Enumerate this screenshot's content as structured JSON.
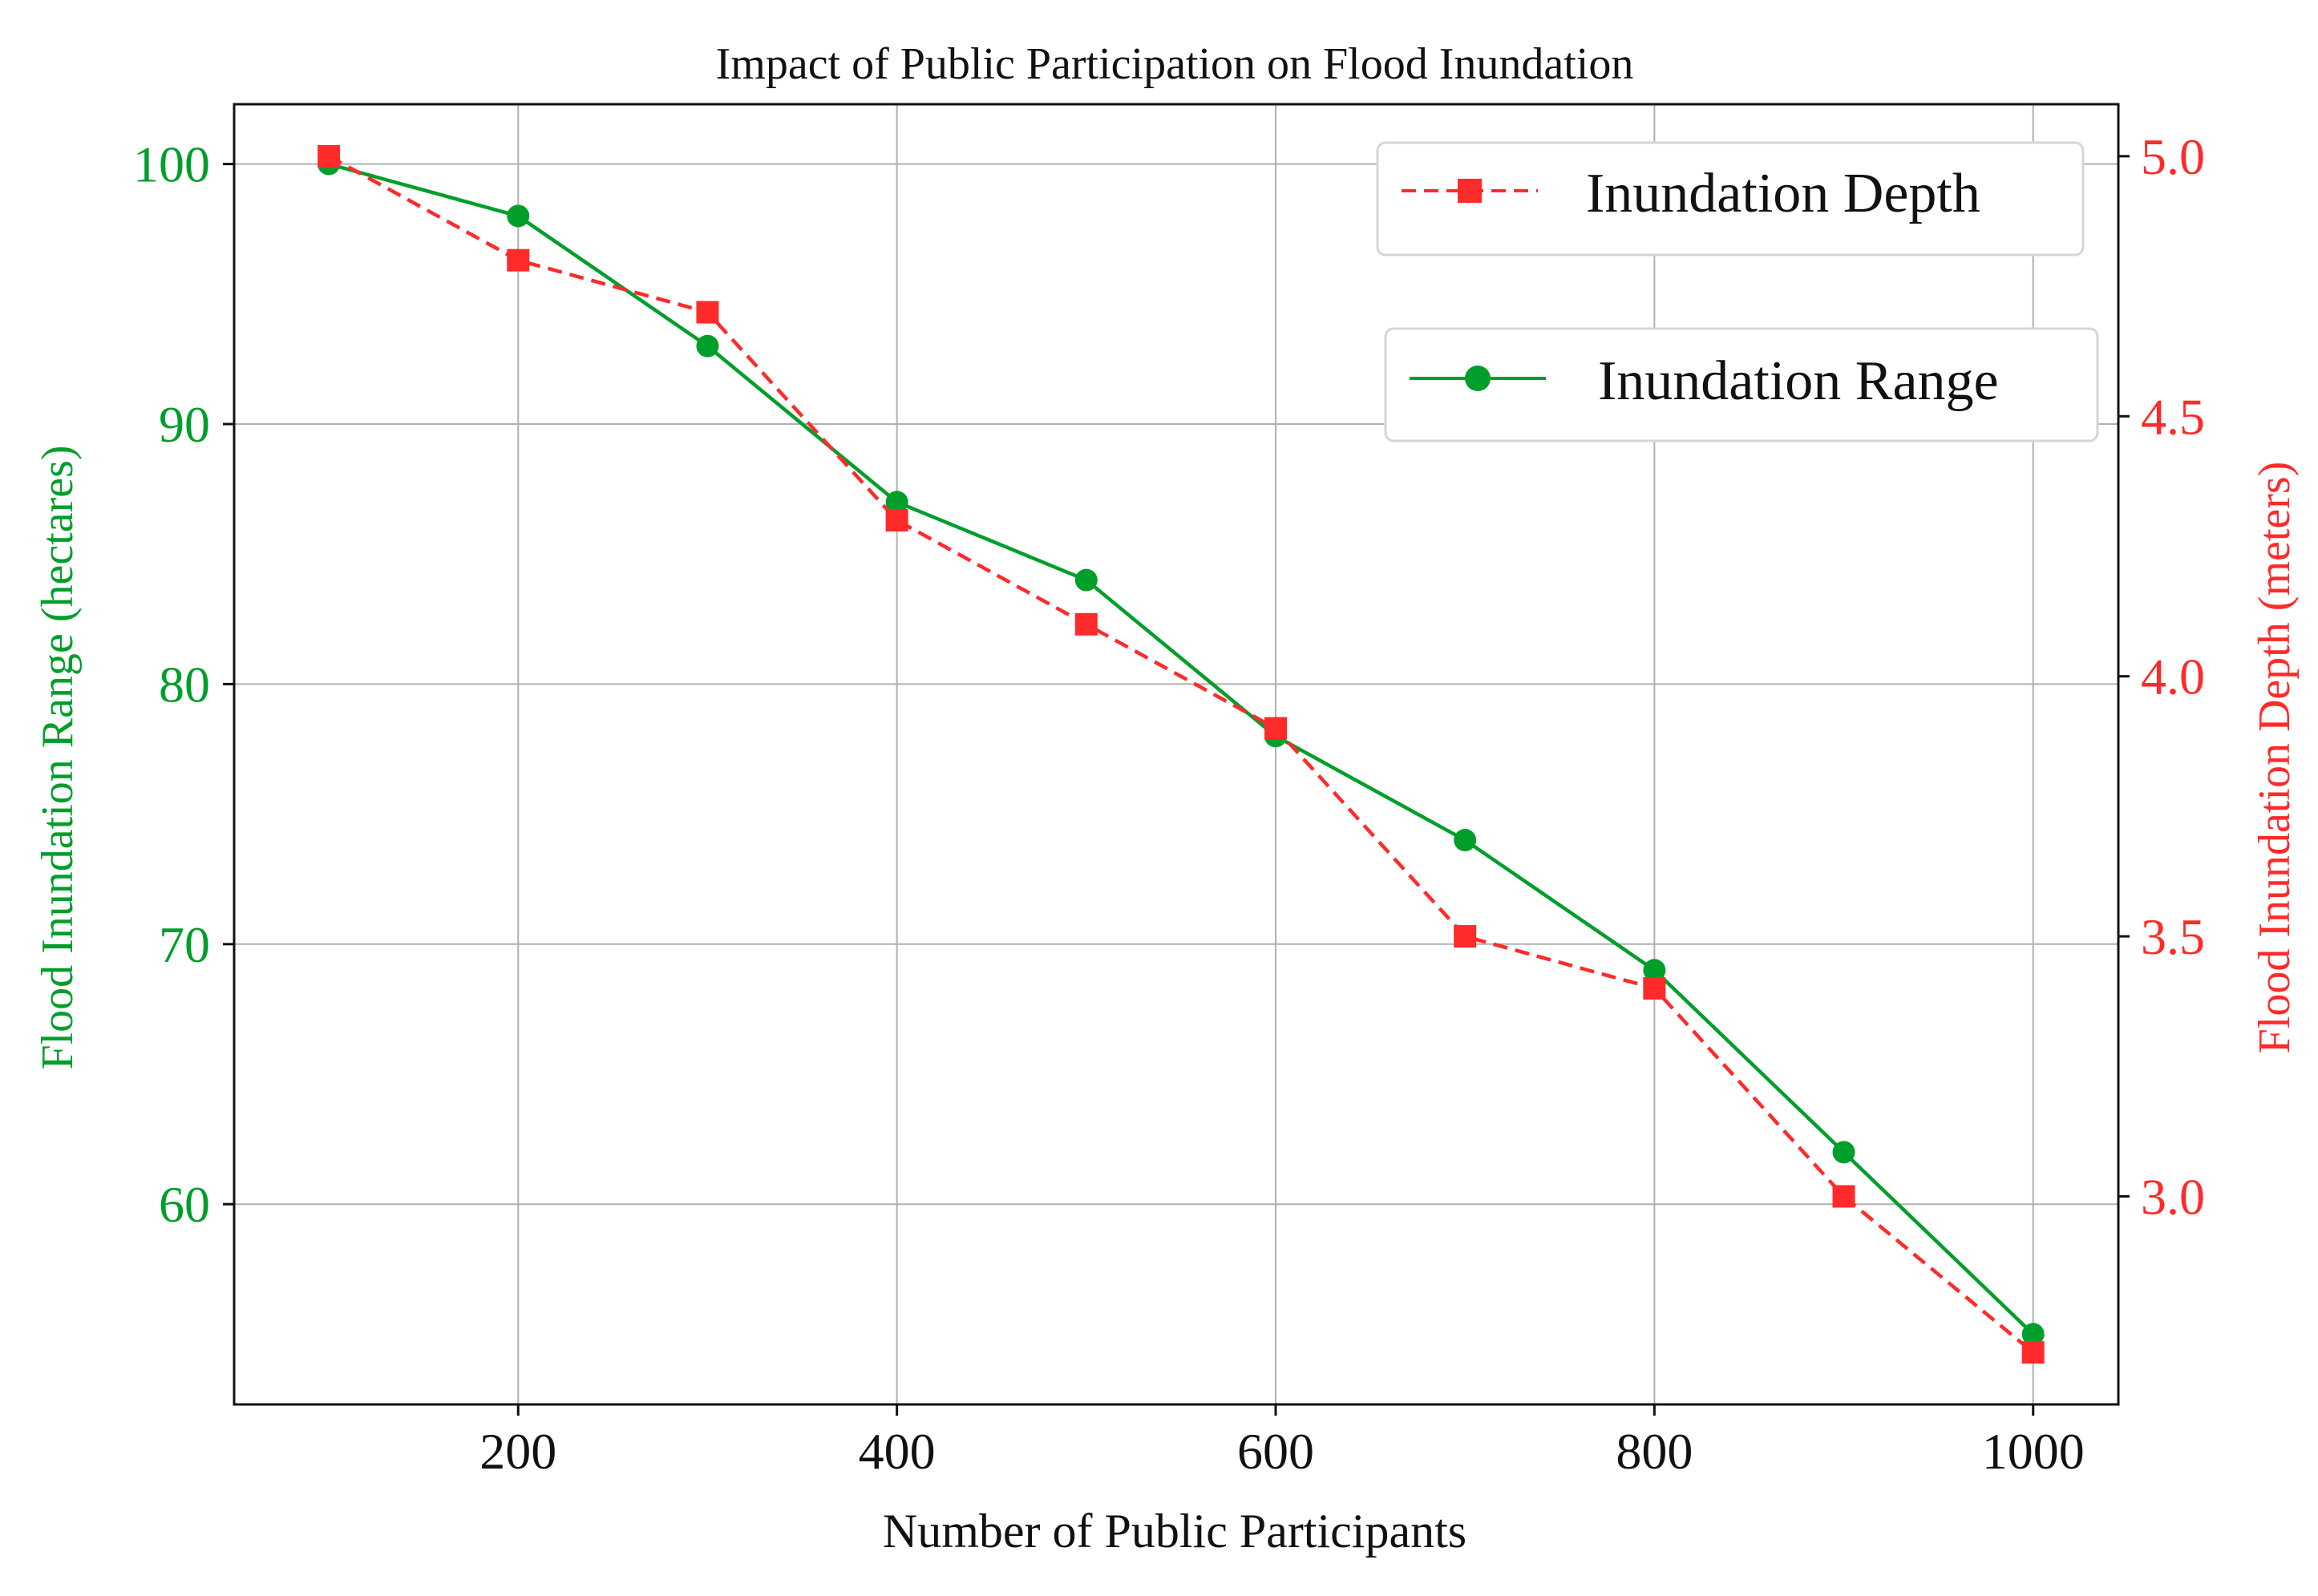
{
  "chart_data": {
    "type": "line",
    "title": "Impact of Public Participation on Flood Inundation",
    "xlabel": "Number of Public Participants",
    "ylabel_left": "Flood Inundation Range (hectares)",
    "ylabel_right": "Flood Inundation Depth (meters)",
    "x": [
      100,
      200,
      300,
      400,
      500,
      600,
      700,
      800,
      900,
      1000
    ],
    "xlim": [
      50,
      1045
    ],
    "ylim_left": [
      52.3,
      102.3
    ],
    "ylim_right": [
      2.6,
      5.1
    ],
    "x_ticks": [
      200,
      400,
      600,
      800,
      1000
    ],
    "x_tick_labels": [
      "200",
      "400",
      "600",
      "800",
      "1000"
    ],
    "y_left_ticks": [
      60,
      70,
      80,
      90,
      100
    ],
    "y_left_tick_labels": [
      "60",
      "70",
      "80",
      "90",
      "100"
    ],
    "y_right_ticks": [
      3.0,
      3.5,
      4.0,
      4.5,
      5.0
    ],
    "y_right_tick_labels": [
      "3.0",
      "3.5",
      "4.0",
      "4.5",
      "5.0"
    ],
    "grid": true,
    "series": [
      {
        "name": "Inundation Range",
        "axis": "left",
        "color": "#009e2a",
        "line_style": "solid",
        "marker": "circle",
        "values": [
          100,
          98,
          93,
          87,
          84,
          78,
          74,
          69,
          62,
          55
        ]
      },
      {
        "name": "Inundation Depth",
        "axis": "right",
        "color": "#ff2a2a",
        "line_style": "dashed",
        "marker": "square",
        "values": [
          5.0,
          4.8,
          4.7,
          4.3,
          4.1,
          3.9,
          3.5,
          3.4,
          3.0,
          2.7
        ]
      }
    ],
    "legends": [
      {
        "label": "Inundation Depth",
        "series": "Inundation Depth",
        "placement": "top-right"
      },
      {
        "label": "Inundation Range",
        "series": "Inundation Range",
        "placement": "upper-right"
      }
    ]
  }
}
